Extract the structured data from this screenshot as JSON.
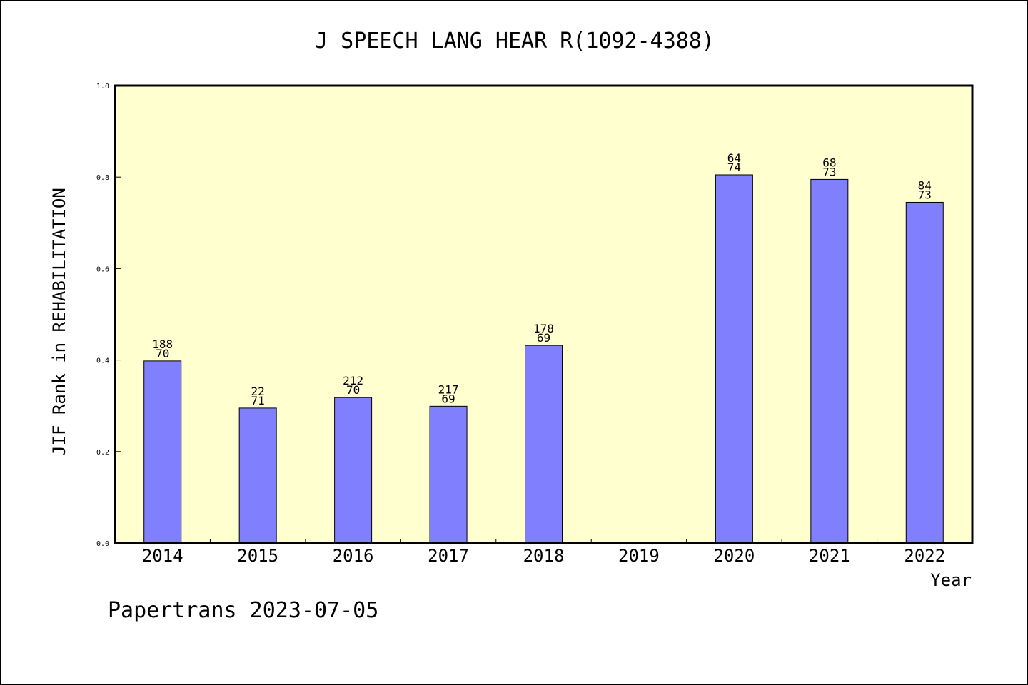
{
  "chart_data": {
    "type": "bar",
    "title": "J SPEECH LANG HEAR R(1092-4388)",
    "xlabel": "Year",
    "ylabel": "JIF Rank in REHABILITATION",
    "ylim": [
      0,
      1.0
    ],
    "yticks": [
      "0.0",
      "0.2",
      "0.4",
      "0.6",
      "0.8",
      "1.0"
    ],
    "categories": [
      "2014",
      "2015",
      "2016",
      "2017",
      "2018",
      "2019",
      "2020",
      "2021",
      "2022"
    ],
    "values": [
      0.398,
      0.295,
      0.318,
      0.299,
      0.432,
      null,
      0.805,
      0.795,
      0.745
    ],
    "bar_labels": [
      [
        "188",
        "70"
      ],
      [
        "22",
        "71"
      ],
      [
        "212",
        "70"
      ],
      [
        "217",
        "69"
      ],
      [
        "178",
        "69"
      ],
      null,
      [
        "64",
        "74"
      ],
      [
        "68",
        "73"
      ],
      [
        "84",
        "73"
      ]
    ],
    "grid": false,
    "colors": {
      "plot_background": "#ffffd0",
      "bar": "#8080ff",
      "axis": "#000000"
    }
  },
  "footer": {
    "credit": "Papertrans 2023-07-05"
  }
}
